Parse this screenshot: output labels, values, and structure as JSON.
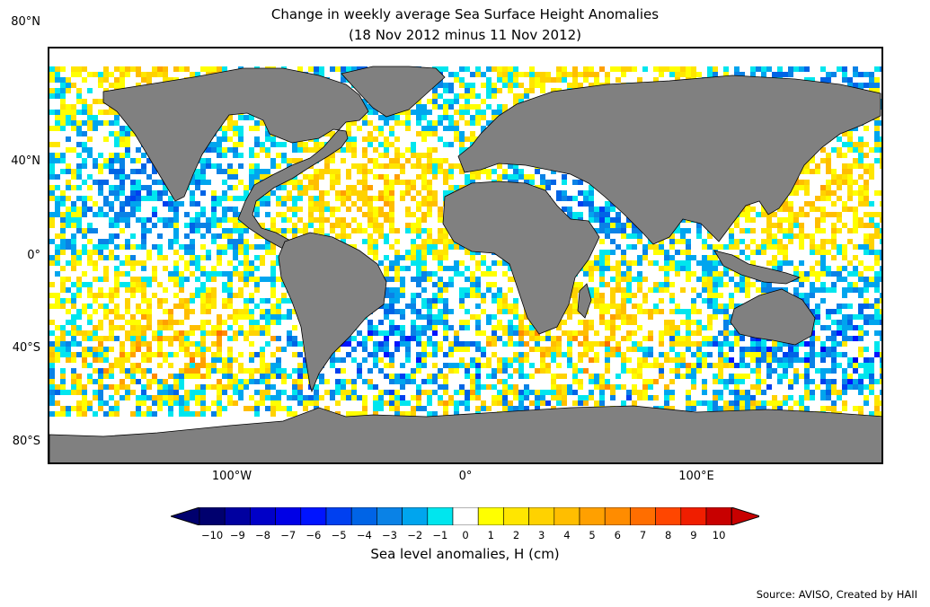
{
  "title": {
    "line1": "Change in weekly average Sea Surface Height Anomalies",
    "line2": "(18 Nov 2012 minus 11 Nov 2012)"
  },
  "map": {
    "land_color": "#808080",
    "background_color": "#ffffff",
    "lat_ticks": [
      "80°N",
      "40°N",
      "0°",
      "40°S",
      "80°S"
    ],
    "lon_ticks": [
      "100°W",
      "0°",
      "100°E"
    ]
  },
  "colorbar": {
    "label": "Sea level anomalies, H (cm)",
    "ticks": [
      "−10",
      "−9",
      "−8",
      "−7",
      "−6",
      "−5",
      "−4",
      "−3",
      "−2",
      "−1",
      "0",
      "1",
      "2",
      "3",
      "4",
      "5",
      "6",
      "7",
      "8",
      "9",
      "10"
    ],
    "colors": [
      "#00006e",
      "#0000a0",
      "#0000c8",
      "#0000e6",
      "#0014ff",
      "#0040f0",
      "#0064e6",
      "#0a82e6",
      "#00a5ee",
      "#00e6ee",
      "#ffffff",
      "#ffff00",
      "#ffe600",
      "#ffd200",
      "#ffbe00",
      "#ffa000",
      "#ff8c00",
      "#ff6e00",
      "#ff4600",
      "#f01e00",
      "#c80000"
    ]
  },
  "source": "Source: AVISO, Created by HAII"
}
